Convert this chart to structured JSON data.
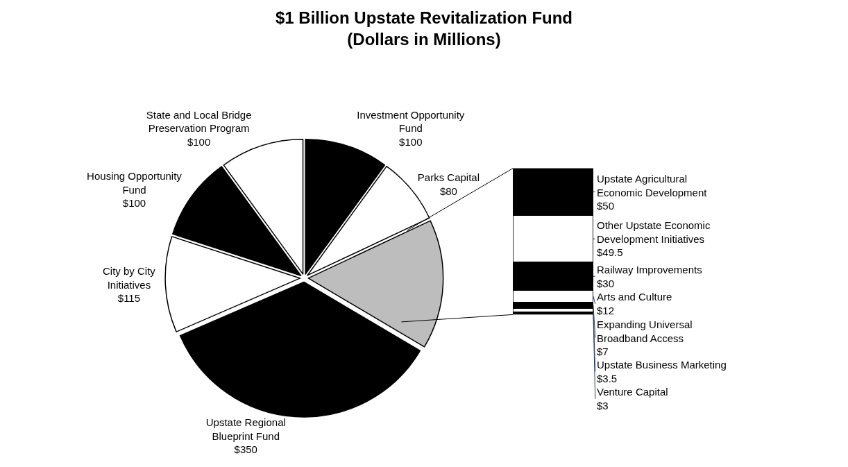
{
  "chart_data": [
    {
      "type": "pie",
      "title": "$1 Billion Upstate Revitalization Fund",
      "subtitle": "(Dollars in Millions)",
      "categories": [
        "State and Local Bridge Preservation Program",
        "Housing Opportunity Fund",
        "City by City Initiatives",
        "Upstate Regional Blueprint Fund",
        null,
        "Parks Capital",
        "Investment Opportunity Fund"
      ],
      "values": [
        100,
        100,
        115,
        350,
        155,
        80,
        100
      ],
      "value_labels": [
        "$100",
        "$100",
        "$115",
        "$350",
        null,
        "$80",
        "$100"
      ],
      "colors": [
        "#ffffff",
        "#000000",
        "#ffffff",
        "#000000",
        "#bdbdbd",
        "#ffffff",
        "#000000"
      ]
    },
    {
      "type": "bar",
      "stacked": true,
      "categories": [
        null
      ],
      "series": [
        {
          "name": "Venture Capital",
          "color": "#000000",
          "values": [
            3
          ],
          "value_labels": [
            "$3"
          ]
        },
        {
          "name": "Upstate Business Marketing",
          "color": "#ffffff",
          "values": [
            3.5
          ],
          "value_labels": [
            "$3.5"
          ]
        },
        {
          "name": "Expanding Universal Broadband Access",
          "color": "#000000",
          "values": [
            7
          ],
          "value_labels": [
            "$7"
          ]
        },
        {
          "name": "Arts and Culture",
          "color": "#ffffff",
          "values": [
            12
          ],
          "value_labels": [
            "$12"
          ]
        },
        {
          "name": "Railway Improvements",
          "color": "#000000",
          "values": [
            30
          ],
          "value_labels": [
            "$30"
          ]
        },
        {
          "name": "Other Upstate Economic Development Initiatives",
          "color": "#ffffff",
          "values": [
            49.5
          ],
          "value_labels": [
            "$49.5"
          ]
        },
        {
          "name": "Upstate Agricultural Economic Development",
          "color": "#000000",
          "values": [
            50
          ],
          "value_labels": [
            "$50"
          ]
        }
      ]
    }
  ]
}
